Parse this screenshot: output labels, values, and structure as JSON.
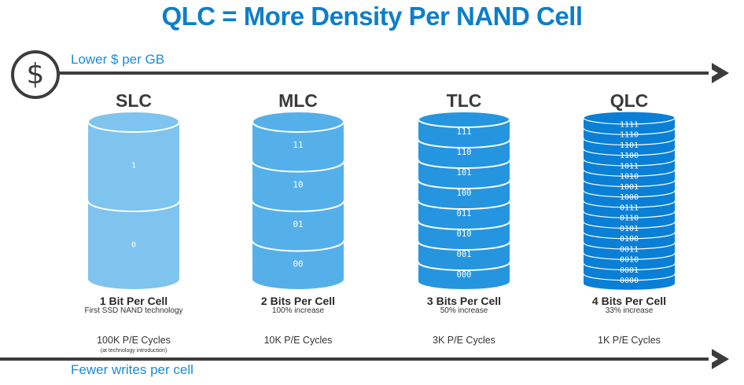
{
  "title": "QLC = More Density Per NAND Cell",
  "top_axis": {
    "label": "Lower $ per GB",
    "icon": "dollar-icon",
    "symbol": "$"
  },
  "bottom_axis": {
    "label": "Fewer writes per cell"
  },
  "colors": {
    "title": "#0e7ec9",
    "slc": "#7ec4ee",
    "mlc": "#55b0ea",
    "tlc": "#2595e0",
    "qlc": "#0a7fd6",
    "arrow": "#3c3c3c"
  },
  "cells": [
    {
      "name": "SLC",
      "bits": "1 Bit Per Cell",
      "note": "First SSD NAND technology",
      "pe": "100K P/E Cycles",
      "pe_note": "(at technology introduction)",
      "levels": [
        "1",
        "0"
      ]
    },
    {
      "name": "MLC",
      "bits": "2 Bits Per Cell",
      "note": "100% increase",
      "pe": "10K P/E Cycles",
      "pe_note": "",
      "levels": [
        "11",
        "10",
        "01",
        "00"
      ]
    },
    {
      "name": "TLC",
      "bits": "3 Bits Per Cell",
      "note": "50% increase",
      "pe": "3K P/E Cycles",
      "pe_note": "",
      "levels": [
        "111",
        "110",
        "101",
        "100",
        "011",
        "010",
        "001",
        "000"
      ]
    },
    {
      "name": "QLC",
      "bits": "4 Bits Per Cell",
      "note": "33% increase",
      "pe": "1K P/E Cycles",
      "pe_note": "",
      "levels": [
        "1111",
        "1110",
        "1101",
        "1100",
        "1011",
        "1010",
        "1001",
        "1000",
        "0111",
        "0110",
        "0101",
        "0100",
        "0011",
        "0010",
        "0001",
        "0000"
      ]
    }
  ]
}
